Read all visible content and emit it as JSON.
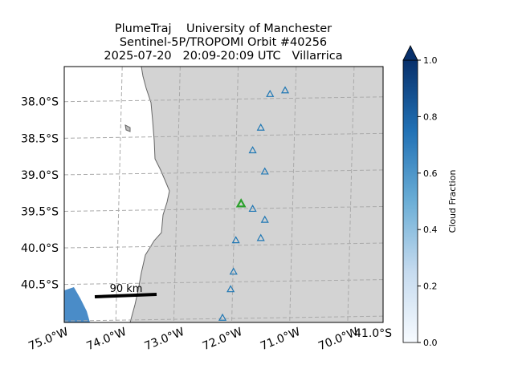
{
  "chart_data": {
    "type": "map",
    "title": [
      "PlumeTraj    University of Manchester",
      "Sentinel-5P/TROPOMI Orbit #40256",
      "2025-07-20   20:09-20:09 UTC   Villarrica"
    ],
    "xlim": [
      -75,
      -69.5
    ],
    "ylim": [
      -41.02,
      -37.52
    ],
    "xticks": [
      {
        "value": -75,
        "label": "75.0°W"
      },
      {
        "value": -74,
        "label": "74.0°W"
      },
      {
        "value": -73,
        "label": "73.0°W"
      },
      {
        "value": -72,
        "label": "72.0°W"
      },
      {
        "value": -71,
        "label": "71.0°W"
      },
      {
        "value": -70,
        "label": "70.0°W"
      }
    ],
    "yticks": [
      {
        "value": -38,
        "label": "38.0°S"
      },
      {
        "value": -38.5,
        "label": "38.5°S"
      },
      {
        "value": -39,
        "label": "39.0°S"
      },
      {
        "value": -39.5,
        "label": "39.5°S"
      },
      {
        "value": -40,
        "label": "40.0°S"
      },
      {
        "value": -40.5,
        "label": "40.5°S"
      }
    ],
    "right_yticks": [
      {
        "value": -41,
        "label": "41.0°S"
      }
    ],
    "grid": true,
    "markers": {
      "color": "#1f77b4",
      "lon": [
        -71.19,
        -71.45,
        -71.61,
        -71.75,
        -71.54,
        -71.75,
        -71.54,
        -71.61,
        -72.04,
        -72.08,
        -72.13,
        -72.27
      ],
      "lat": [
        -37.85,
        -37.9,
        -38.36,
        -38.67,
        -38.96,
        -39.47,
        -39.62,
        -39.87,
        -39.9,
        -40.33,
        -40.57,
        -40.96
      ]
    },
    "highlight": {
      "color": "#2ca02c",
      "lon": -71.95,
      "lat": -39.4
    },
    "scale_label": "90 km",
    "colorbar": {
      "label": "Cloud Fraction",
      "lim": [
        0,
        1
      ],
      "ticks": [
        {
          "value": 0,
          "label": "0.0"
        },
        {
          "value": 0.2,
          "label": "0.2"
        },
        {
          "value": 0.4,
          "label": "0.4"
        },
        {
          "value": 0.6,
          "label": "0.6"
        },
        {
          "value": 0.8,
          "label": "0.8"
        },
        {
          "value": 1,
          "label": "1.0"
        }
      ]
    }
  }
}
